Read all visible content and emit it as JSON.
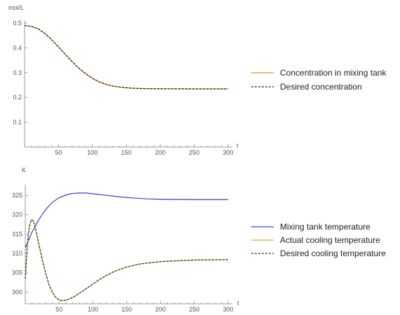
{
  "chart_data": [
    {
      "type": "line",
      "ylabel": "mol/L",
      "xlabel": "t",
      "xlim": [
        0,
        300
      ],
      "ylim": [
        0,
        0.5
      ],
      "x_ticks": [
        50,
        100,
        150,
        200,
        250,
        300
      ],
      "y_ticks": [
        0.1,
        0.2,
        0.3,
        0.4,
        0.5
      ],
      "legend_position": "right",
      "series": [
        {
          "name": "Concentration in mixing tank",
          "color": "#e8921e",
          "dash": "solid",
          "points": [
            [
              0,
              0.49
            ],
            [
              10,
              0.487
            ],
            [
              20,
              0.477
            ],
            [
              30,
              0.458
            ],
            [
              40,
              0.433
            ],
            [
              50,
              0.404
            ],
            [
              60,
              0.374
            ],
            [
              70,
              0.345
            ],
            [
              80,
              0.318
            ],
            [
              90,
              0.296
            ],
            [
              100,
              0.277
            ],
            [
              110,
              0.263
            ],
            [
              120,
              0.253
            ],
            [
              130,
              0.246
            ],
            [
              140,
              0.242
            ],
            [
              150,
              0.239
            ],
            [
              160,
              0.237
            ],
            [
              170,
              0.236
            ],
            [
              180,
              0.2355
            ],
            [
              200,
              0.235
            ],
            [
              250,
              0.2345
            ],
            [
              300,
              0.2345
            ]
          ]
        },
        {
          "name": "Desired concentration",
          "color": "#222222",
          "dash": "dashed",
          "points": [
            [
              0,
              0.49
            ],
            [
              10,
              0.487
            ],
            [
              20,
              0.477
            ],
            [
              30,
              0.458
            ],
            [
              40,
              0.433
            ],
            [
              50,
              0.404
            ],
            [
              60,
              0.374
            ],
            [
              70,
              0.345
            ],
            [
              80,
              0.318
            ],
            [
              90,
              0.296
            ],
            [
              100,
              0.277
            ],
            [
              110,
              0.263
            ],
            [
              120,
              0.253
            ],
            [
              130,
              0.246
            ],
            [
              140,
              0.242
            ],
            [
              150,
              0.239
            ],
            [
              160,
              0.237
            ],
            [
              170,
              0.236
            ],
            [
              180,
              0.2355
            ],
            [
              200,
              0.235
            ],
            [
              250,
              0.2345
            ],
            [
              300,
              0.2345
            ]
          ]
        }
      ]
    },
    {
      "type": "line",
      "ylabel": "K",
      "xlabel": "t",
      "xlim": [
        0,
        300
      ],
      "ylim": [
        297,
        327
      ],
      "x_ticks": [
        50,
        100,
        150,
        200,
        250,
        300
      ],
      "y_ticks": [
        300,
        305,
        310,
        315,
        320,
        325
      ],
      "legend_position": "right",
      "series": [
        {
          "name": "Mixing tank temperature",
          "color": "#3a3ad0",
          "dash": "solid",
          "points": [
            [
              0,
              311.5
            ],
            [
              5,
              313.5
            ],
            [
              10,
              315.5
            ],
            [
              20,
              318.7
            ],
            [
              30,
              321.3
            ],
            [
              40,
              323.2
            ],
            [
              50,
              324.4
            ],
            [
              60,
              325.1
            ],
            [
              70,
              325.5
            ],
            [
              80,
              325.6
            ],
            [
              90,
              325.6
            ],
            [
              100,
              325.4
            ],
            [
              120,
              325.0
            ],
            [
              140,
              324.6
            ],
            [
              160,
              324.3
            ],
            [
              180,
              324.1
            ],
            [
              200,
              324.0
            ],
            [
              250,
              323.9
            ],
            [
              300,
              323.9
            ]
          ]
        },
        {
          "name": "Actual cooling temperature",
          "color": "#e8a840",
          "dash": "solid",
          "points": [
            [
              0,
              303.5
            ],
            [
              3,
              312
            ],
            [
              6,
              317
            ],
            [
              9,
              318.7
            ],
            [
              12,
              318.4
            ],
            [
              15,
              316.5
            ],
            [
              20,
              312.5
            ],
            [
              25,
              308.5
            ],
            [
              30,
              305
            ],
            [
              35,
              302
            ],
            [
              40,
              300
            ],
            [
              45,
              298.7
            ],
            [
              50,
              298
            ],
            [
              55,
              297.8
            ],
            [
              60,
              297.9
            ],
            [
              70,
              298.6
            ],
            [
              80,
              299.7
            ],
            [
              90,
              300.9
            ],
            [
              100,
              302.1
            ],
            [
              110,
              303.3
            ],
            [
              120,
              304.3
            ],
            [
              130,
              305.2
            ],
            [
              140,
              305.9
            ],
            [
              150,
              306.5
            ],
            [
              170,
              307.3
            ],
            [
              200,
              307.9
            ],
            [
              250,
              308.3
            ],
            [
              300,
              308.4
            ]
          ]
        },
        {
          "name": "Desired cooling temperature",
          "color": "#333333",
          "dash": "dashed",
          "points": [
            [
              0,
              303.5
            ],
            [
              3,
              312
            ],
            [
              6,
              317
            ],
            [
              9,
              318.7
            ],
            [
              12,
              318.4
            ],
            [
              15,
              316.5
            ],
            [
              20,
              312.5
            ],
            [
              25,
              308.5
            ],
            [
              30,
              305
            ],
            [
              35,
              302
            ],
            [
              40,
              300
            ],
            [
              45,
              298.7
            ],
            [
              50,
              298
            ],
            [
              55,
              297.8
            ],
            [
              60,
              297.9
            ],
            [
              70,
              298.6
            ],
            [
              80,
              299.7
            ],
            [
              90,
              300.9
            ],
            [
              100,
              302.1
            ],
            [
              110,
              303.3
            ],
            [
              120,
              304.3
            ],
            [
              130,
              305.2
            ],
            [
              140,
              305.9
            ],
            [
              150,
              306.5
            ],
            [
              170,
              307.3
            ],
            [
              200,
              307.9
            ],
            [
              250,
              308.3
            ],
            [
              300,
              308.4
            ]
          ]
        }
      ]
    }
  ]
}
